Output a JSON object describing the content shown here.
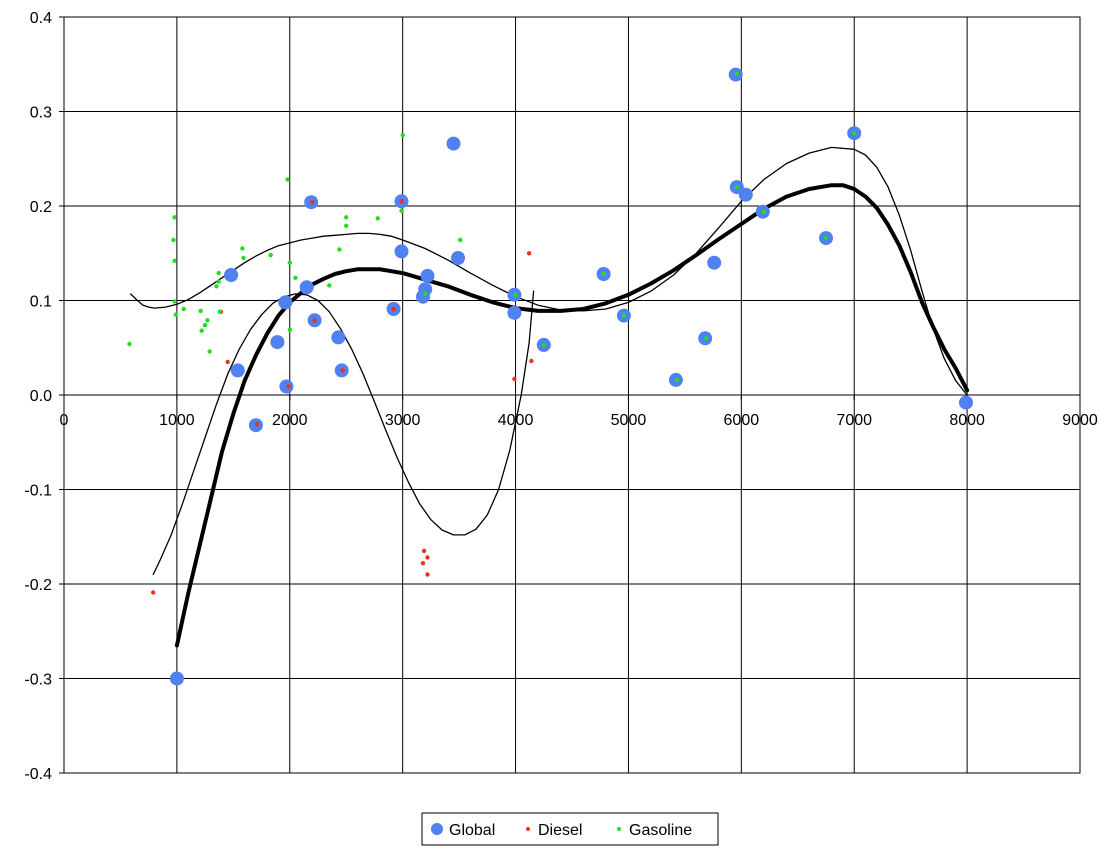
{
  "colors": {
    "global": "#4F81F0",
    "diesel": "#E8361A",
    "gasoline": "#22DD22",
    "grid": "#000000",
    "trend": "#000000"
  },
  "chart_data": {
    "type": "scatter",
    "title": "",
    "xlabel": "",
    "ylabel": "",
    "xlim": [
      0,
      9000
    ],
    "ylim": [
      -0.4,
      0.4
    ],
    "x_ticks": [
      0,
      1000,
      2000,
      3000,
      4000,
      5000,
      6000,
      7000,
      8000,
      9000
    ],
    "y_ticks": [
      0.4,
      0.3,
      0.2,
      0.1,
      0.0,
      -0.1,
      -0.2,
      -0.3,
      -0.4
    ],
    "x_tick_labels": [
      "0",
      "1000",
      "2000",
      "3000",
      "4000",
      "5000",
      "6000",
      "7000",
      "8000",
      "9000"
    ],
    "y_tick_labels": [
      "0.4",
      "0.3",
      "0.2",
      "0.1",
      "0.0",
      "-0.1",
      "-0.2",
      "-0.3",
      "-0.4"
    ],
    "grid": true,
    "legend_position": "bottom-center",
    "series": [
      {
        "name": "Global",
        "marker": "large-circle",
        "points": [
          [
            1000,
            -0.3
          ],
          [
            1480,
            0.127
          ],
          [
            1540,
            0.026
          ],
          [
            1700,
            -0.032
          ],
          [
            1890,
            0.056
          ],
          [
            1960,
            0.098
          ],
          [
            1970,
            0.009
          ],
          [
            2150,
            0.114
          ],
          [
            2190,
            0.204
          ],
          [
            2220,
            0.079
          ],
          [
            2430,
            0.061
          ],
          [
            2460,
            0.026
          ],
          [
            2920,
            0.091
          ],
          [
            2990,
            0.205
          ],
          [
            2990,
            0.152
          ],
          [
            3180,
            0.104
          ],
          [
            3200,
            0.112
          ],
          [
            3220,
            0.126
          ],
          [
            3450,
            0.266
          ],
          [
            3490,
            0.145
          ],
          [
            3990,
            0.087
          ],
          [
            3990,
            0.106
          ],
          [
            4250,
            0.053
          ],
          [
            4780,
            0.128
          ],
          [
            4960,
            0.084
          ],
          [
            5420,
            0.016
          ],
          [
            5680,
            0.06
          ],
          [
            5760,
            0.14
          ],
          [
            5950,
            0.339
          ],
          [
            5960,
            0.22
          ],
          [
            6040,
            0.212
          ],
          [
            6190,
            0.194
          ],
          [
            6750,
            0.166
          ],
          [
            7000,
            0.277
          ],
          [
            7990,
            -0.008
          ]
        ]
      },
      {
        "name": "Diesel",
        "marker": "small-dot",
        "points": [
          [
            790,
            -0.209
          ],
          [
            1390,
            0.088
          ],
          [
            1450,
            0.035
          ],
          [
            1710,
            -0.031
          ],
          [
            1990,
            0.009
          ],
          [
            2200,
            0.204
          ],
          [
            2220,
            0.079
          ],
          [
            2470,
            0.026
          ],
          [
            2920,
            0.091
          ],
          [
            2990,
            0.205
          ],
          [
            3190,
            -0.165
          ],
          [
            3180,
            -0.178
          ],
          [
            3220,
            -0.172
          ],
          [
            3220,
            -0.19
          ],
          [
            3990,
            0.017
          ],
          [
            4120,
            0.15
          ],
          [
            4140,
            0.036
          ]
        ]
      },
      {
        "name": "Gasoline",
        "marker": "small-dot",
        "points": [
          [
            580,
            0.054
          ],
          [
            980,
            0.188
          ],
          [
            970,
            0.164
          ],
          [
            980,
            0.142
          ],
          [
            980,
            0.099
          ],
          [
            990,
            0.085
          ],
          [
            1060,
            0.091
          ],
          [
            1210,
            0.089
          ],
          [
            1220,
            0.068
          ],
          [
            1250,
            0.074
          ],
          [
            1270,
            0.079
          ],
          [
            1290,
            0.046
          ],
          [
            1350,
            0.115
          ],
          [
            1370,
            0.12
          ],
          [
            1370,
            0.129
          ],
          [
            1380,
            0.088
          ],
          [
            1580,
            0.155
          ],
          [
            1590,
            0.145
          ],
          [
            1830,
            0.148
          ],
          [
            1980,
            0.228
          ],
          [
            2000,
            0.14
          ],
          [
            2000,
            0.069
          ],
          [
            2050,
            0.124
          ],
          [
            2350,
            0.116
          ],
          [
            2440,
            0.154
          ],
          [
            2500,
            0.188
          ],
          [
            2500,
            0.179
          ],
          [
            2780,
            0.187
          ],
          [
            2990,
            0.195
          ],
          [
            3000,
            0.275
          ],
          [
            3200,
            0.107
          ],
          [
            3510,
            0.164
          ],
          [
            4000,
            0.106
          ],
          [
            4250,
            0.053
          ],
          [
            4780,
            0.128
          ],
          [
            4960,
            0.084
          ],
          [
            5430,
            0.016
          ],
          [
            5690,
            0.06
          ],
          [
            5960,
            0.34
          ],
          [
            5960,
            0.22
          ],
          [
            6200,
            0.194
          ],
          [
            6750,
            0.166
          ],
          [
            7000,
            0.277
          ]
        ]
      }
    ],
    "trendlines": [
      {
        "style": "thick",
        "points": [
          [
            1000,
            -0.265
          ],
          [
            1100,
            -0.21
          ],
          [
            1200,
            -0.16
          ],
          [
            1300,
            -0.11
          ],
          [
            1400,
            -0.06
          ],
          [
            1500,
            -0.02
          ],
          [
            1600,
            0.015
          ],
          [
            1700,
            0.042
          ],
          [
            1800,
            0.065
          ],
          [
            1900,
            0.084
          ],
          [
            2000,
            0.098
          ],
          [
            2100,
            0.108
          ],
          [
            2200,
            0.117
          ],
          [
            2300,
            0.123
          ],
          [
            2400,
            0.128
          ],
          [
            2500,
            0.131
          ],
          [
            2600,
            0.133
          ],
          [
            2700,
            0.133
          ],
          [
            2800,
            0.133
          ],
          [
            2900,
            0.131
          ],
          [
            3000,
            0.129
          ],
          [
            3200,
            0.122
          ],
          [
            3400,
            0.115
          ],
          [
            3600,
            0.106
          ],
          [
            3800,
            0.098
          ],
          [
            4000,
            0.092
          ],
          [
            4200,
            0.089
          ],
          [
            4400,
            0.089
          ],
          [
            4600,
            0.091
          ],
          [
            4800,
            0.097
          ],
          [
            5000,
            0.106
          ],
          [
            5200,
            0.118
          ],
          [
            5400,
            0.132
          ],
          [
            5600,
            0.148
          ],
          [
            5800,
            0.165
          ],
          [
            6000,
            0.181
          ],
          [
            6200,
            0.197
          ],
          [
            6400,
            0.21
          ],
          [
            6600,
            0.218
          ],
          [
            6800,
            0.222
          ],
          [
            6900,
            0.222
          ],
          [
            7000,
            0.218
          ],
          [
            7100,
            0.21
          ],
          [
            7200,
            0.198
          ],
          [
            7300,
            0.18
          ],
          [
            7400,
            0.158
          ],
          [
            7500,
            0.13
          ],
          [
            7600,
            0.098
          ],
          [
            7700,
            0.072
          ],
          [
            7800,
            0.048
          ],
          [
            7900,
            0.028
          ],
          [
            8000,
            0.005
          ]
        ]
      },
      {
        "style": "thin",
        "points": [
          [
            790,
            -0.19
          ],
          [
            850,
            -0.175
          ],
          [
            950,
            -0.148
          ],
          [
            1050,
            -0.115
          ],
          [
            1150,
            -0.08
          ],
          [
            1250,
            -0.045
          ],
          [
            1350,
            -0.01
          ],
          [
            1450,
            0.022
          ],
          [
            1550,
            0.048
          ],
          [
            1650,
            0.069
          ],
          [
            1750,
            0.085
          ],
          [
            1850,
            0.097
          ],
          [
            1950,
            0.104
          ],
          [
            2050,
            0.107
          ],
          [
            2150,
            0.106
          ],
          [
            2250,
            0.1
          ],
          [
            2350,
            0.088
          ],
          [
            2450,
            0.07
          ],
          [
            2550,
            0.048
          ],
          [
            2650,
            0.022
          ],
          [
            2750,
            -0.007
          ],
          [
            2850,
            -0.037
          ],
          [
            2950,
            -0.066
          ],
          [
            3050,
            -0.092
          ],
          [
            3150,
            -0.115
          ],
          [
            3250,
            -0.132
          ],
          [
            3350,
            -0.143
          ],
          [
            3450,
            -0.148
          ],
          [
            3550,
            -0.148
          ],
          [
            3650,
            -0.142
          ],
          [
            3750,
            -0.127
          ],
          [
            3850,
            -0.1
          ],
          [
            3950,
            -0.058
          ],
          [
            4050,
            0.0
          ],
          [
            4120,
            0.055
          ],
          [
            4160,
            0.11
          ]
        ]
      },
      {
        "style": "thin",
        "points": [
          [
            590,
            0.107
          ],
          [
            650,
            0.1
          ],
          [
            700,
            0.095
          ],
          [
            750,
            0.093
          ],
          [
            800,
            0.092
          ],
          [
            900,
            0.093
          ],
          [
            1000,
            0.096
          ],
          [
            1100,
            0.101
          ],
          [
            1200,
            0.108
          ],
          [
            1300,
            0.116
          ],
          [
            1400,
            0.124
          ],
          [
            1500,
            0.132
          ],
          [
            1600,
            0.14
          ],
          [
            1700,
            0.147
          ],
          [
            1800,
            0.153
          ],
          [
            1900,
            0.158
          ],
          [
            2000,
            0.161
          ],
          [
            2100,
            0.164
          ],
          [
            2200,
            0.166
          ],
          [
            2300,
            0.168
          ],
          [
            2400,
            0.169
          ],
          [
            2500,
            0.17
          ],
          [
            2600,
            0.171
          ],
          [
            2700,
            0.171
          ],
          [
            2800,
            0.17
          ],
          [
            2900,
            0.168
          ],
          [
            3000,
            0.164
          ],
          [
            3200,
            0.155
          ],
          [
            3400,
            0.143
          ],
          [
            3600,
            0.129
          ],
          [
            3800,
            0.116
          ],
          [
            4000,
            0.104
          ],
          [
            4200,
            0.095
          ],
          [
            4400,
            0.09
          ],
          [
            4600,
            0.089
          ],
          [
            4800,
            0.091
          ],
          [
            5000,
            0.098
          ],
          [
            5200,
            0.11
          ],
          [
            5400,
            0.127
          ],
          [
            5600,
            0.15
          ],
          [
            5800,
            0.177
          ],
          [
            6000,
            0.205
          ],
          [
            6200,
            0.228
          ],
          [
            6400,
            0.245
          ],
          [
            6600,
            0.256
          ],
          [
            6800,
            0.262
          ],
          [
            7000,
            0.26
          ],
          [
            7100,
            0.254
          ],
          [
            7200,
            0.241
          ],
          [
            7300,
            0.22
          ],
          [
            7400,
            0.19
          ],
          [
            7500,
            0.153
          ],
          [
            7600,
            0.11
          ],
          [
            7700,
            0.07
          ],
          [
            7800,
            0.038
          ],
          [
            7900,
            0.015
          ],
          [
            8000,
            0.0
          ]
        ]
      }
    ]
  }
}
